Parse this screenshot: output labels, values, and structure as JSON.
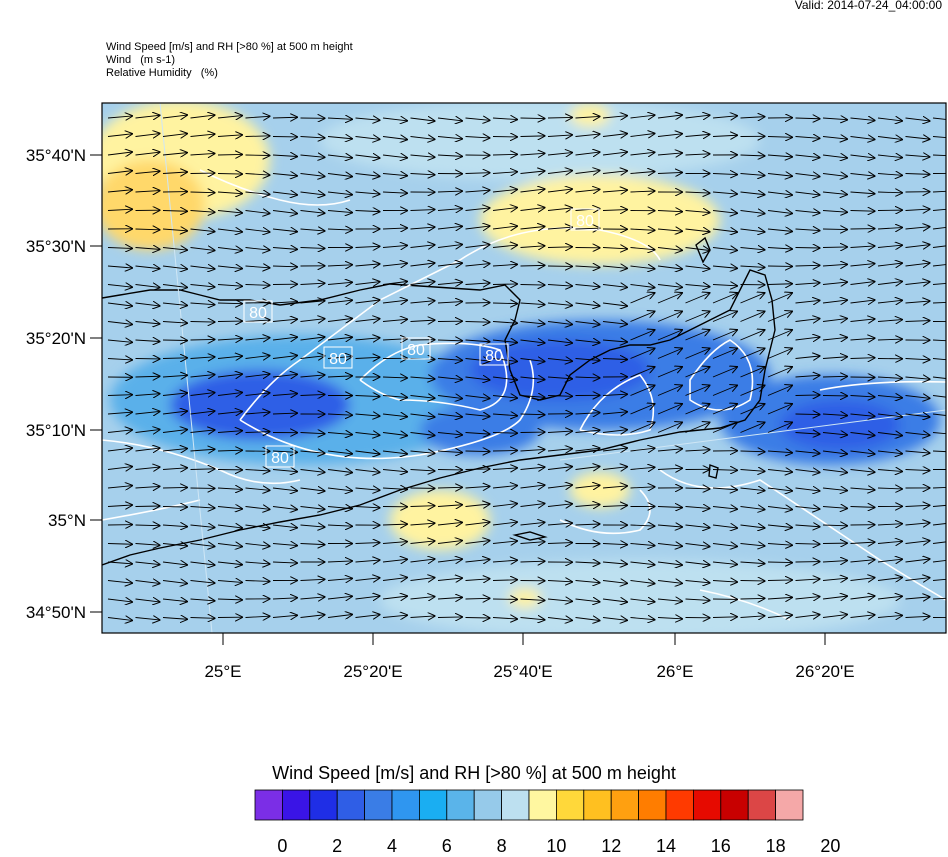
{
  "valid_time": "Valid: 2014-07-24_04:00:00",
  "header": {
    "line1": "Wind Speed [m/s] and RH [>80 %] at 500 m height",
    "line2": "Wind   (m s-1)",
    "line3": "Relative Humidity   (%)"
  },
  "map": {
    "lat_labels": [
      "35°40'N",
      "35°30'N",
      "35°20'N",
      "35°10'N",
      "35°N",
      "34°50'N"
    ],
    "lon_labels": [
      "25°E",
      "25°20'E",
      "25°40'E",
      "26°E",
      "26°20'E"
    ],
    "contour_labels": [
      "80",
      "80",
      "80",
      "80",
      "80",
      "80"
    ],
    "wind_direction": "westerly"
  },
  "colorbar": {
    "title": "Wind Speed [m/s] and RH [>80 %] at 500 m height",
    "tick_labels": [
      "0",
      "2",
      "4",
      "6",
      "8",
      "10",
      "12",
      "14",
      "16",
      "18",
      "20"
    ],
    "colors": [
      "#7b2ee6",
      "#3a14e6",
      "#1f2ee6",
      "#2f5ee6",
      "#3a7de6",
      "#2f96f0",
      "#1aaef2",
      "#5ab4ea",
      "#96caea",
      "#bde0f0",
      "#fff7a0",
      "#ffd83a",
      "#ffc020",
      "#ffa010",
      "#ff7d00",
      "#ff3a00",
      "#e60a00",
      "#c80000",
      "#dc4646",
      "#f5a8a8"
    ]
  }
}
